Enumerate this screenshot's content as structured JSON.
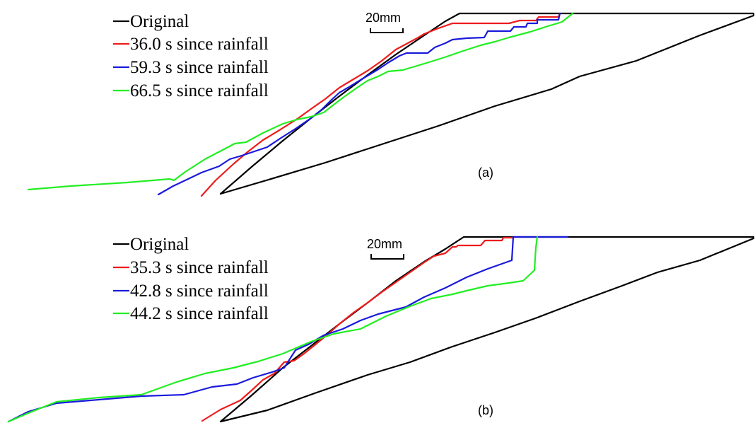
{
  "colors": {
    "original": "#000000",
    "red": "#ee1c1c",
    "blue": "#1a1adc",
    "green": "#22ee22"
  },
  "panels": [
    {
      "label": "(a)",
      "scale_bar": "20mm",
      "legend": [
        {
          "text": "Original",
          "color": "#000000"
        },
        {
          "text": "36.0 s since rainfall",
          "color": "#ee1c1c"
        },
        {
          "text": "59.3 s since rainfall",
          "color": "#1a1adc"
        },
        {
          "text": "66.5 s since rainfall",
          "color": "#22ee22"
        }
      ]
    },
    {
      "label": "(b)",
      "scale_bar": "20mm",
      "legend": [
        {
          "text": "Original",
          "color": "#000000"
        },
        {
          "text": "35.3 s since rainfall",
          "color": "#ee1c1c"
        },
        {
          "text": "42.8 s since rainfall",
          "color": "#1a1adc"
        },
        {
          "text": "44.2 s since rainfall",
          "color": "#22ee22"
        }
      ]
    }
  ]
}
